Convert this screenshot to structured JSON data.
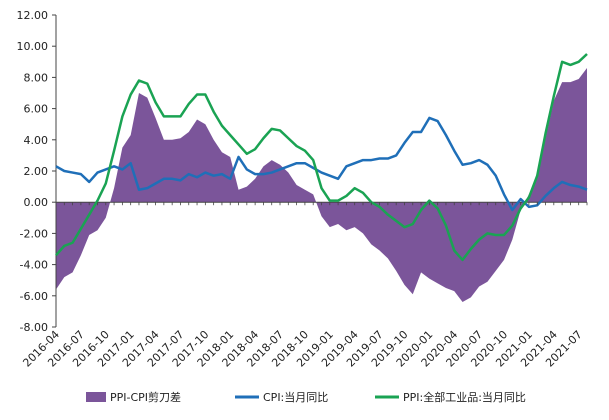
{
  "chart_data": {
    "type": "line",
    "title": "",
    "xlabel": "",
    "ylabel": "",
    "ylim": [
      -8,
      12
    ],
    "yticks": [
      "12.00",
      "10.00",
      "8.00",
      "6.00",
      "4.00",
      "2.00",
      "0.00",
      "-2.00",
      "-4.00",
      "-6.00",
      "-8.00"
    ],
    "ytick_values": [
      12,
      10,
      8,
      6,
      4,
      2,
      0,
      -2,
      -4,
      -6,
      -8
    ],
    "x": [
      "2016-04",
      "2016-05",
      "2016-06",
      "2016-07",
      "2016-08",
      "2016-09",
      "2016-10",
      "2016-11",
      "2016-12",
      "2017-01",
      "2017-02",
      "2017-03",
      "2017-04",
      "2017-05",
      "2017-06",
      "2017-07",
      "2017-08",
      "2017-09",
      "2017-10",
      "2017-11",
      "2017-12",
      "2018-01",
      "2018-02",
      "2018-03",
      "2018-04",
      "2018-05",
      "2018-06",
      "2018-07",
      "2018-08",
      "2018-09",
      "2018-10",
      "2018-11",
      "2018-12",
      "2019-01",
      "2019-02",
      "2019-03",
      "2019-04",
      "2019-05",
      "2019-06",
      "2019-07",
      "2019-08",
      "2019-09",
      "2019-10",
      "2019-11",
      "2019-12",
      "2020-01",
      "2020-02",
      "2020-03",
      "2020-04",
      "2020-05",
      "2020-06",
      "2020-07",
      "2020-08",
      "2020-09",
      "2020-10",
      "2020-11",
      "2020-12",
      "2021-01",
      "2021-02",
      "2021-03",
      "2021-04",
      "2021-05",
      "2021-06",
      "2021-07",
      "2021-08"
    ],
    "xtick_labels": [
      "2016-04",
      "2016-07",
      "2016-10",
      "2017-01",
      "2017-04",
      "2017-07",
      "2017-10",
      "2018-01",
      "2018-04",
      "2018-07",
      "2018-10",
      "2019-01",
      "2019-04",
      "2019-07",
      "2019-10",
      "2020-01",
      "2020-04",
      "2020-07",
      "2020-10",
      "2021-01",
      "2021-04",
      "2021-07"
    ],
    "xtick_index": [
      0,
      3,
      6,
      9,
      12,
      15,
      18,
      21,
      24,
      27,
      30,
      33,
      36,
      39,
      42,
      45,
      48,
      51,
      54,
      57,
      60,
      63
    ],
    "grid": false,
    "legend_position": "bottom",
    "series": [
      {
        "name": "PPI-CPI剪刀差",
        "type": "area",
        "color": "#7b559a",
        "values": [
          -5.6,
          -4.8,
          -4.5,
          -3.4,
          -2.1,
          -1.8,
          -1.0,
          0.9,
          3.5,
          4.3,
          7.0,
          6.7,
          5.4,
          4.0,
          4.0,
          4.1,
          4.5,
          5.3,
          5.0,
          4.0,
          3.2,
          2.9,
          0.8,
          1.0,
          1.5,
          2.3,
          2.7,
          2.4,
          1.9,
          1.1,
          0.8,
          0.5,
          -0.9,
          -1.6,
          -1.4,
          -1.8,
          -1.6,
          -2.0,
          -2.7,
          -3.1,
          -3.6,
          -4.4,
          -5.3,
          -5.9,
          -4.5,
          -4.9,
          -5.2,
          -5.5,
          -5.7,
          -6.4,
          -6.1,
          -5.4,
          -5.1,
          -4.4,
          -3.7,
          -2.4,
          -0.5,
          0.5,
          1.6,
          4.1,
          6.5,
          7.7,
          7.7,
          7.9,
          8.6
        ]
      },
      {
        "name": "CPI:当月同比",
        "type": "line",
        "color": "#1f6fb8",
        "values": [
          2.3,
          2.0,
          1.9,
          1.8,
          1.3,
          1.9,
          2.1,
          2.3,
          2.1,
          2.5,
          0.8,
          0.9,
          1.2,
          1.5,
          1.5,
          1.4,
          1.8,
          1.6,
          1.9,
          1.7,
          1.8,
          1.5,
          2.9,
          2.1,
          1.8,
          1.8,
          1.9,
          2.1,
          2.3,
          2.5,
          2.5,
          2.2,
          1.9,
          1.7,
          1.5,
          2.3,
          2.5,
          2.7,
          2.7,
          2.8,
          2.8,
          3.0,
          3.8,
          4.5,
          4.5,
          5.4,
          5.2,
          4.3,
          3.3,
          2.4,
          2.5,
          2.7,
          2.4,
          1.7,
          0.5,
          -0.5,
          0.2,
          -0.3,
          -0.2,
          0.4,
          0.9,
          1.3,
          1.1,
          1.0,
          0.8
        ]
      },
      {
        "name": "PPI:全部工业品:当月同比",
        "type": "line",
        "color": "#1aa353",
        "values": [
          -3.4,
          -2.8,
          -2.6,
          -1.7,
          -0.8,
          0.1,
          1.2,
          3.3,
          5.5,
          6.9,
          7.8,
          7.6,
          6.4,
          5.5,
          5.5,
          5.5,
          6.3,
          6.9,
          6.9,
          5.8,
          4.9,
          4.3,
          3.7,
          3.1,
          3.4,
          4.1,
          4.7,
          4.6,
          4.1,
          3.6,
          3.3,
          2.7,
          0.9,
          0.1,
          0.1,
          0.4,
          0.9,
          0.6,
          0.0,
          -0.3,
          -0.8,
          -1.2,
          -1.6,
          -1.4,
          -0.5,
          0.1,
          -0.4,
          -1.5,
          -3.1,
          -3.7,
          -3.0,
          -2.4,
          -2.0,
          -2.1,
          -2.1,
          -1.5,
          -0.4,
          0.3,
          1.7,
          4.4,
          6.8,
          9.0,
          8.8,
          9.0,
          9.5
        ]
      }
    ]
  }
}
